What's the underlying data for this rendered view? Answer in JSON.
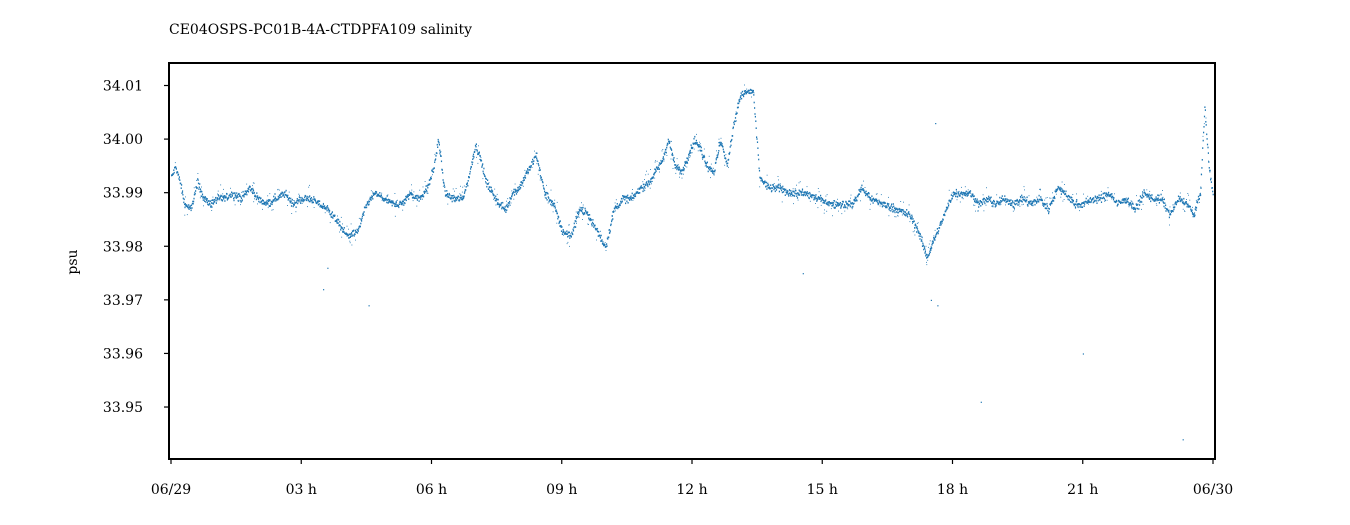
{
  "chart_data": {
    "type": "scatter",
    "title": "CE04OSPS-PC01B-4A-CTDPFA109 salinity",
    "xlabel": "",
    "ylabel": "psu",
    "xlim": [
      0,
      24
    ],
    "ylim": [
      33.9403,
      34.0142
    ],
    "x_units": "hours after 06/29 00:00",
    "x_ticks": [
      {
        "value": 0,
        "label": "06/29"
      },
      {
        "value": 3,
        "label": "03 h"
      },
      {
        "value": 6,
        "label": "06 h"
      },
      {
        "value": 9,
        "label": "09 h"
      },
      {
        "value": 12,
        "label": "12 h"
      },
      {
        "value": 15,
        "label": "15 h"
      },
      {
        "value": 18,
        "label": "18 h"
      },
      {
        "value": 21,
        "label": "21 h"
      },
      {
        "value": 24,
        "label": "06/30"
      }
    ],
    "y_ticks": [
      {
        "value": 34.01,
        "label": "34.01"
      },
      {
        "value": 34.0,
        "label": "34.00"
      },
      {
        "value": 33.99,
        "label": "33.99"
      },
      {
        "value": 33.98,
        "label": "33.98"
      },
      {
        "value": 33.97,
        "label": "33.97"
      },
      {
        "value": 33.96,
        "label": "33.96"
      },
      {
        "value": 33.95,
        "label": "33.95"
      }
    ],
    "grid": false,
    "legend": "none",
    "series": [
      {
        "color": "#1f77b4",
        "x": [
          0.0,
          0.1,
          0.2,
          0.3,
          0.45,
          0.6,
          0.75,
          0.9,
          1.05,
          1.2,
          1.4,
          1.6,
          1.8,
          2.0,
          2.2,
          2.4,
          2.6,
          2.8,
          3.0,
          3.2,
          3.4,
          3.6,
          3.8,
          3.95,
          4.1,
          4.3,
          4.5,
          4.7,
          4.9,
          5.1,
          5.3,
          5.5,
          5.7,
          5.9,
          6.05,
          6.15,
          6.3,
          6.5,
          6.7,
          6.85,
          7.0,
          7.1,
          7.25,
          7.4,
          7.55,
          7.7,
          7.85,
          8.0,
          8.2,
          8.4,
          8.6,
          8.8,
          9.0,
          9.2,
          9.4,
          9.6,
          9.8,
          10.0,
          10.2,
          10.4,
          10.6,
          10.8,
          11.0,
          11.15,
          11.3,
          11.45,
          11.6,
          11.75,
          11.9,
          12.05,
          12.2,
          12.35,
          12.5,
          12.65,
          12.8,
          12.95,
          13.1,
          13.25,
          13.4,
          13.55,
          13.75,
          14.0,
          14.3,
          14.6,
          14.9,
          15.2,
          15.5,
          15.7,
          15.9,
          16.1,
          16.4,
          16.7,
          17.0,
          17.2,
          17.4,
          17.6,
          17.8,
          18.0,
          18.2,
          18.4,
          18.6,
          18.8,
          19.0,
          19.2,
          19.4,
          19.6,
          19.8,
          20.0,
          20.2,
          20.4,
          20.6,
          20.8,
          21.0,
          21.2,
          21.4,
          21.6,
          21.8,
          22.0,
          22.2,
          22.4,
          22.6,
          22.8,
          23.0,
          23.2,
          23.4,
          23.55,
          23.7,
          23.8,
          23.9,
          24.0
        ],
        "y": [
          33.993,
          33.995,
          33.992,
          33.988,
          33.987,
          33.992,
          33.989,
          33.988,
          33.989,
          33.989,
          33.99,
          33.989,
          33.991,
          33.989,
          33.988,
          33.989,
          33.99,
          33.988,
          33.989,
          33.989,
          33.988,
          33.987,
          33.985,
          33.983,
          33.982,
          33.983,
          33.988,
          33.99,
          33.989,
          33.988,
          33.988,
          33.99,
          33.989,
          33.991,
          33.995,
          34.0,
          33.99,
          33.989,
          33.989,
          33.993,
          33.999,
          33.997,
          33.992,
          33.99,
          33.988,
          33.987,
          33.99,
          33.991,
          33.994,
          33.997,
          33.99,
          33.988,
          33.983,
          33.982,
          33.987,
          33.986,
          33.983,
          33.98,
          33.987,
          33.989,
          33.989,
          33.991,
          33.992,
          33.994,
          33.996,
          34.0,
          33.995,
          33.994,
          33.997,
          34.0,
          33.998,
          33.995,
          33.994,
          34.0,
          33.995,
          34.003,
          34.008,
          34.009,
          34.009,
          33.993,
          33.991,
          33.991,
          33.99,
          33.99,
          33.989,
          33.988,
          33.988,
          33.988,
          33.991,
          33.989,
          33.988,
          33.987,
          33.986,
          33.983,
          33.978,
          33.982,
          33.986,
          33.99,
          33.99,
          33.99,
          33.988,
          33.989,
          33.988,
          33.989,
          33.988,
          33.989,
          33.988,
          33.989,
          33.987,
          33.991,
          33.99,
          33.988,
          33.988,
          33.989,
          33.989,
          33.99,
          33.988,
          33.989,
          33.987,
          33.99,
          33.989,
          33.989,
          33.986,
          33.989,
          33.988,
          33.986,
          33.99,
          34.006,
          33.995,
          33.989
        ]
      }
    ],
    "outliers": {
      "x": [
        4.55,
        3.6,
        14.55,
        17.5,
        17.65,
        18.65,
        21.0,
        23.3,
        17.6,
        3.5
      ],
      "y": [
        33.969,
        33.976,
        33.975,
        33.97,
        33.969,
        33.951,
        33.96,
        33.944,
        34.003,
        33.972
      ]
    }
  }
}
